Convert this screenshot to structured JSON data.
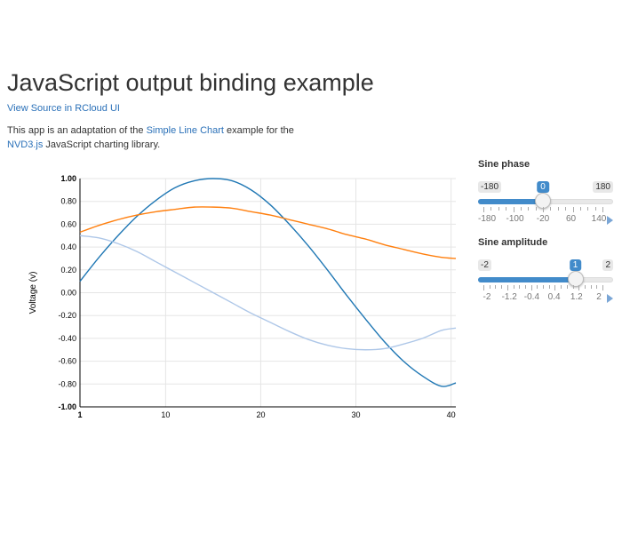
{
  "page": {
    "title": "JavaScript output binding example",
    "source_link": "View Source in RCloud UI",
    "desc_part1": "This app is an adaptation of the ",
    "desc_link1": "Simple Line Chart",
    "desc_part2": " example for the ",
    "desc_link2": "NVD3.js",
    "desc_part3": " JavaScript charting library."
  },
  "controls": {
    "phase": {
      "label": "Sine phase",
      "min_label": "-180",
      "max_label": "180",
      "value_label": "0",
      "fraction": 0.5,
      "tick_labels": [
        "-180",
        "-100",
        "-20",
        "60",
        "140"
      ]
    },
    "amplitude": {
      "label": "Sine amplitude",
      "min_label": "-2",
      "max_label": "2",
      "value_label": "1",
      "fraction": 0.75,
      "tick_labels": [
        "-2",
        "-1.2",
        "-0.4",
        "0.4",
        "1.2",
        "2"
      ]
    }
  },
  "colors": {
    "series_dark": "#1f77b4",
    "series_orange": "#ff7f0e",
    "series_light": "#aec7e8",
    "accent": "#428bca"
  },
  "chart_data": {
    "type": "line",
    "ylabel": "Voltage (v)",
    "xlabel": "",
    "xlim": [
      1,
      40.5
    ],
    "ylim": [
      -1,
      1
    ],
    "x_ticks": [
      1,
      10,
      20,
      30,
      40
    ],
    "y_ticks": [
      "1.00",
      "0.80",
      "0.60",
      "0.40",
      "0.20",
      "0.00",
      "-0.20",
      "-0.40",
      "-0.60",
      "-0.80",
      "-1.00"
    ],
    "grid": true,
    "legend": "none",
    "series": [
      {
        "x": [
          1,
          3,
          5,
          7,
          9,
          11,
          13,
          15,
          17,
          19,
          21,
          23,
          25,
          27,
          29,
          31,
          33,
          35,
          37,
          39,
          40.5
        ],
        "values": [
          0.1,
          0.31,
          0.5,
          0.67,
          0.81,
          0.92,
          0.98,
          1.0,
          0.98,
          0.9,
          0.77,
          0.6,
          0.41,
          0.2,
          -0.02,
          -0.23,
          -0.43,
          -0.6,
          -0.73,
          -0.82,
          -0.79
        ]
      },
      {
        "x": [
          1,
          3,
          5,
          7,
          9,
          11,
          13,
          15,
          17,
          19,
          21,
          23,
          25,
          27,
          29,
          31,
          33,
          35,
          37,
          39,
          40.5
        ],
        "values": [
          0.53,
          0.59,
          0.64,
          0.68,
          0.71,
          0.73,
          0.75,
          0.75,
          0.74,
          0.71,
          0.68,
          0.64,
          0.6,
          0.56,
          0.51,
          0.47,
          0.42,
          0.38,
          0.34,
          0.31,
          0.3
        ]
      },
      {
        "x": [
          1,
          3,
          5,
          7,
          9,
          11,
          13,
          15,
          17,
          19,
          21,
          23,
          25,
          27,
          29,
          31,
          33,
          35,
          37,
          39,
          40.5
        ],
        "values": [
          0.5,
          0.48,
          0.43,
          0.36,
          0.27,
          0.18,
          0.09,
          0.0,
          -0.09,
          -0.18,
          -0.26,
          -0.34,
          -0.41,
          -0.46,
          -0.49,
          -0.5,
          -0.49,
          -0.45,
          -0.4,
          -0.33,
          -0.31
        ]
      }
    ]
  }
}
